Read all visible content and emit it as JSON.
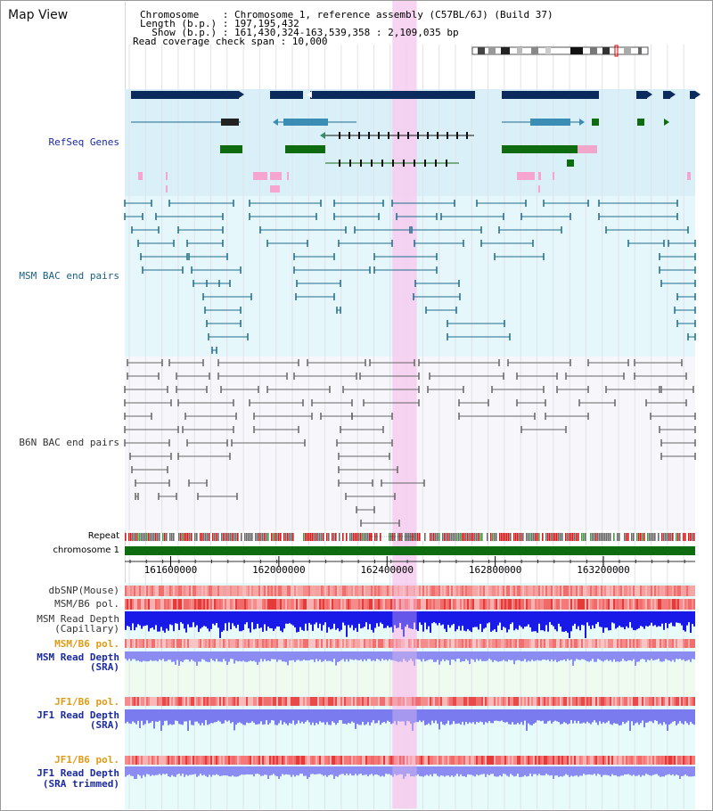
{
  "title": "Map View",
  "info": {
    "line1": "Chromosome    : Chromosome 1, reference assembly (C57BL/6J) (Build 37)",
    "line2": "Length (b.p.) : 197,195,432",
    "line3": "  Show (b.p.) : 161,430,324-163,539,358 : 2,109,035 bp",
    "line4": "Read coverage check span : 10,000"
  },
  "colors": {
    "refseq_bg": "#d9f0f9",
    "msm_bg": "#e5f7fb",
    "b6n_bg": "#f7f7fb",
    "highlight": "#f6ccef",
    "refseq_label": "#1a2aa0",
    "msm_label": "#1a5f80",
    "b6n_label": "#333333",
    "orange_label": "#e09a15",
    "blue_label": "#1a2aa0",
    "chromosome_bar": "#0e6b10"
  },
  "tracks": {
    "refseq": "RefSeq Genes",
    "msm_bac": "MSM BAC end pairs",
    "b6n_bac": "B6N BAC end pairs",
    "repeat": "Repeat",
    "chromosome": "chromosome 1",
    "dbsnp": "dbSNP(Mouse)",
    "msm_b6_pol_1": "MSM/B6 pol.",
    "msm_read_depth_cap_1": "MSM Read Depth",
    "msm_read_depth_cap_2": "(Capillary)",
    "msm_b6_pol_2": "MSM/B6 pol.",
    "msm_read_depth_sra_1": "MSM Read Depth",
    "msm_read_depth_sra_2": "(SRA)",
    "jf1_b6_pol_1": "JF1/B6 pol.",
    "jf1_read_depth_sra_1": "JF1 Read Depth",
    "jf1_read_depth_sra_2": "(SRA)",
    "jf1_b6_pol_2": "JF1/B6 pol.",
    "jf1_read_depth_trim_1": "JF1 Read Depth",
    "jf1_read_depth_trim_2": "(SRA trimmed)"
  },
  "axis": {
    "start_bp": 161430324,
    "end_bp": 163539358,
    "ticks": [
      161600000,
      162000000,
      162400000,
      162800000,
      163200000
    ],
    "tick_labels": [
      "161600000",
      "162000000",
      "162400000",
      "162800000",
      "163200000"
    ]
  },
  "highlight_region": {
    "start_bp": 162420000,
    "end_bp": 162510000
  }
}
